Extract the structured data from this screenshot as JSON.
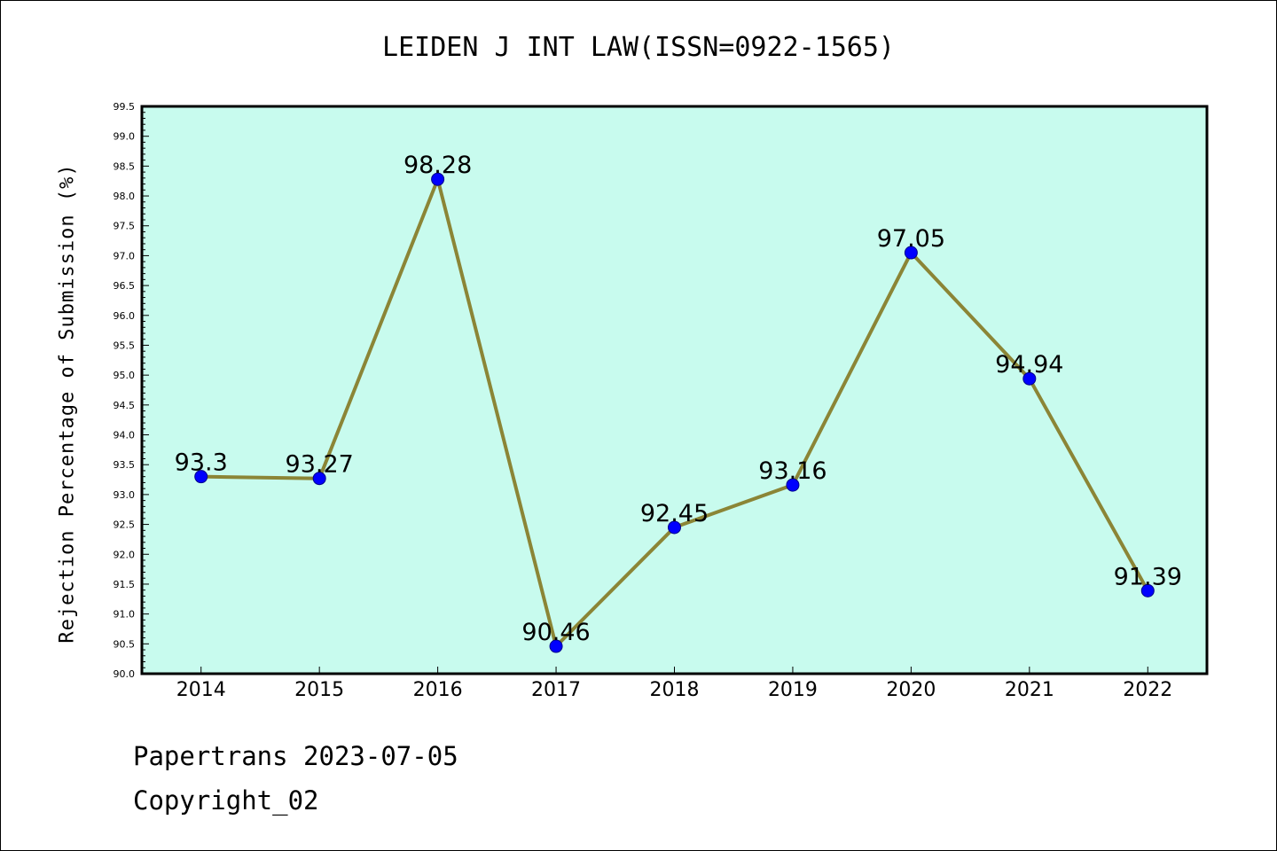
{
  "title": "LEIDEN J INT LAW(ISSN=0922-1565)",
  "footer": {
    "line1": "Papertrans 2023-07-05",
    "line2": "Copyright_02"
  },
  "colors": {
    "plot_background": "#c8fbee",
    "line": "#8b8536",
    "marker": "#0000ff",
    "axes": "#000000"
  },
  "chart_data": {
    "type": "line",
    "title": "LEIDEN J INT LAW(ISSN=0922-1565)",
    "xlabel": "",
    "ylabel": "Rejection Percentage of Submission (%)",
    "categories": [
      "2014",
      "2015",
      "2016",
      "2017",
      "2018",
      "2019",
      "2020",
      "2021",
      "2022"
    ],
    "series": [
      {
        "values": [
          93.3,
          93.27,
          98.28,
          90.46,
          92.45,
          93.16,
          97.05,
          94.94,
          91.39
        ],
        "labels": [
          "93.3",
          "93.27",
          "98.28",
          "90.46",
          "92.45",
          "93.16",
          "97.05",
          "94.94",
          "91.39"
        ]
      }
    ],
    "ylim": [
      90.0,
      99.5
    ],
    "yticks": [
      "90.0",
      "90.5",
      "91.0",
      "91.5",
      "92.0",
      "92.5",
      "93.0",
      "93.5",
      "94.0",
      "94.5",
      "95.0",
      "95.5",
      "96.0",
      "96.5",
      "97.0",
      "97.5",
      "98.0",
      "98.5",
      "99.0",
      "99.5"
    ],
    "y_minor_step": 0.1,
    "grid": false,
    "legend": "none"
  }
}
